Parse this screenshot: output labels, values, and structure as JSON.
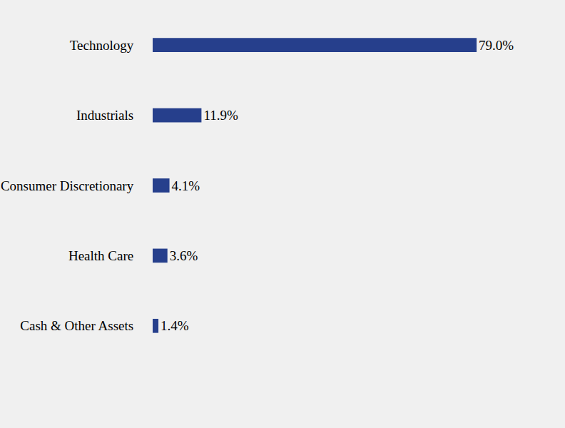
{
  "chart_data": {
    "type": "bar",
    "orientation": "horizontal",
    "categories": [
      "Technology",
      "Industrials",
      "Consumer Discretionary",
      "Health Care",
      "Cash & Other Assets"
    ],
    "values": [
      79.0,
      11.9,
      4.1,
      3.6,
      1.4
    ],
    "value_labels": [
      "79.0%",
      "11.9%",
      "4.1%",
      "3.6%",
      "1.4%"
    ],
    "color": "#263f8c",
    "data_labels": true,
    "tick_labels": "y",
    "grid": false
  }
}
